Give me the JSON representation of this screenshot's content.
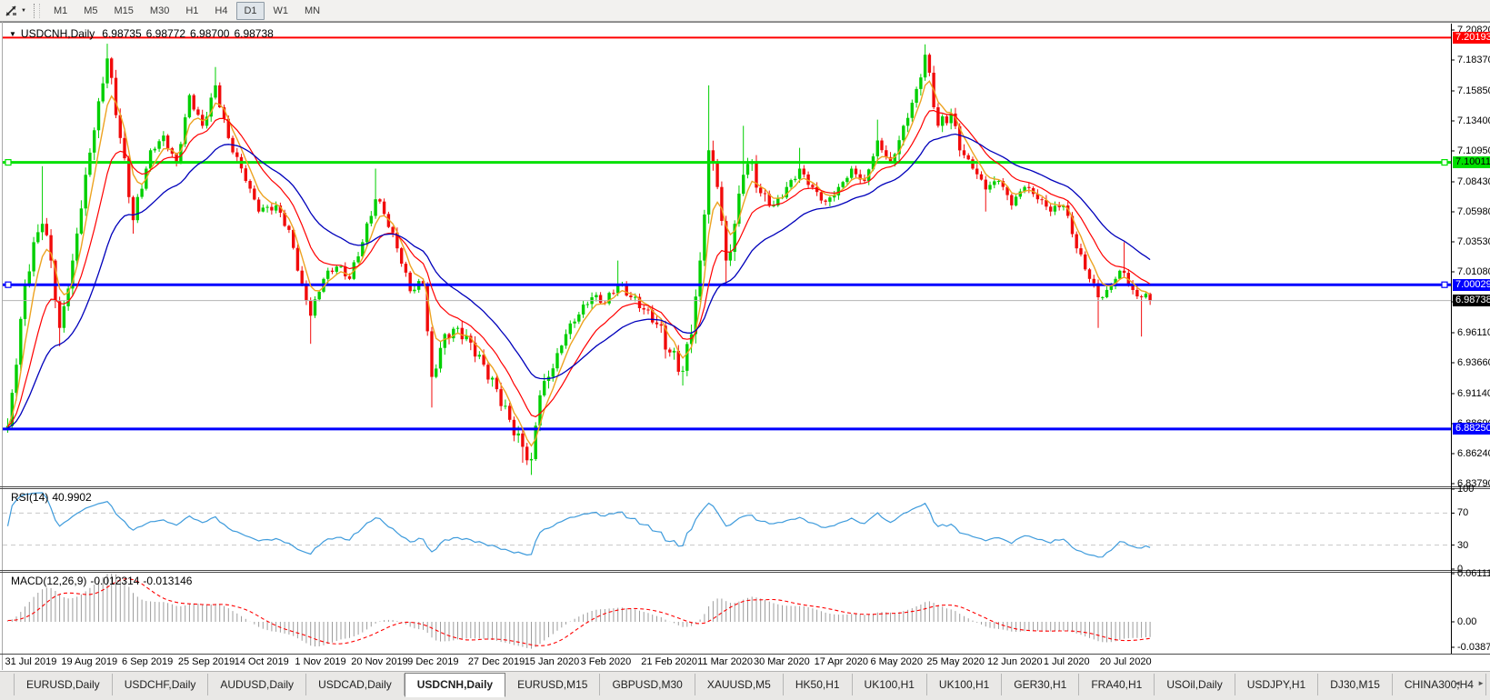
{
  "toolbar": {
    "caret": "▼",
    "periods": [
      "M1",
      "M5",
      "M15",
      "M30",
      "H1",
      "H4",
      "D1",
      "W1",
      "MN"
    ],
    "active_period": "D1"
  },
  "chart": {
    "collapse_arrow": "▼",
    "symbol_timeframe": "USDCNH,Daily",
    "open": "6.98735",
    "high": "6.98772",
    "low": "6.98700",
    "close": "6.98738"
  },
  "rsi_label": {
    "name": "RSI(14)",
    "value": "40.9902"
  },
  "macd_label": {
    "name": "MACD(12,26,9)",
    "value": "-0.012314",
    "signal_value": "-0.013146"
  },
  "tabbar": {
    "scroll_left": "◄",
    "scroll_right": "►",
    "active_tab": "USDCNH,Daily",
    "tabs": [
      "EURUSD,Daily",
      "USDCHF,Daily",
      "AUDUSD,Daily",
      "USDCAD,Daily",
      "USDCNH,Daily",
      "EURUSD,M15",
      "GBPUSD,M30",
      "XAUUSD,M5",
      "HK50,H1",
      "UK100,H1",
      "UK100,H1",
      "GER30,H1",
      "FRA40,H1",
      "USOil,Daily",
      "USDJPY,H1",
      "DJ30,M15",
      "CHINA300,H4"
    ]
  },
  "chart_data": {
    "type": "candlestick",
    "symbol": "USDCNH",
    "timeframe": "Daily",
    "current_ohlc": {
      "open": 6.98735,
      "high": 6.98772,
      "low": 6.987,
      "close": 6.98738
    },
    "price_axis_ticks": [
      "7.20820",
      "7.18370",
      "7.15850",
      "7.13400",
      "7.10950",
      "7.08430",
      "7.05980",
      "7.03530",
      "7.01080",
      "6.98630",
      "6.96110",
      "6.93660",
      "6.91140",
      "6.88690",
      "6.86240",
      "6.83790"
    ],
    "date_ticks": {
      "indices": [
        0,
        13,
        27,
        40,
        53,
        67,
        80,
        93,
        107,
        120,
        133,
        147,
        160,
        173,
        187,
        200,
        213,
        227,
        240,
        253
      ],
      "labels": [
        "31 Jul 2019",
        "19 Aug 2019",
        "6 Sep 2019",
        "25 Sep 2019",
        "14 Oct 2019",
        "1 Nov 2019",
        "20 Nov 2019",
        "9 Dec 2019",
        "27 Dec 2019",
        "15 Jan 2020",
        "3 Feb 2020",
        "21 Feb 2020",
        "11 Mar 2020",
        "30 Mar 2020",
        "17 Apr 2020",
        "6 May 2020",
        "25 May 2020",
        "12 Jun 2020",
        "1 Jul 2020",
        "20 Jul 2020"
      ]
    },
    "levels": [
      {
        "price": 7.20193,
        "label": "7.20193",
        "color": "#ff0000",
        "badge_color": "#ff0000",
        "badge_text_color": "#ffffff",
        "width": 2,
        "name": "resistance-line-upper",
        "end_markers": false
      },
      {
        "price": 7.10011,
        "label": "7.10011",
        "color": "#00e000",
        "badge_color": "#00e000",
        "badge_text_color": "#000000",
        "width": 3,
        "name": "resistance-line-green",
        "end_markers": true
      },
      {
        "price": 7.00029,
        "label": "7.00029",
        "color": "#0000ff",
        "badge_color": "#0000ff",
        "badge_text_color": "#ffffff",
        "width": 3,
        "name": "support-line-blue",
        "end_markers": true
      },
      {
        "price": 6.98738,
        "label": "6.98738",
        "color": "#b4b4b4",
        "badge_color": "#000000",
        "badge_text_color": "#ffffff",
        "width": 1,
        "name": "current-price-line",
        "end_markers": false
      },
      {
        "price": 6.8825,
        "label": "6.88250",
        "color": "#0000ff",
        "badge_color": "#0000ff",
        "badge_text_color": "#ffffff",
        "width": 3,
        "name": "support-line-lower",
        "end_markers": false
      }
    ],
    "candle_count": 265,
    "up_color": "#00cf00",
    "down_color": "#f10b0b",
    "prehistory": {
      "bars": 48,
      "base": 6.876,
      "amp": 0.005,
      "drift": 0.00022
    },
    "volatility_zones": [
      {
        "from": 0,
        "to": 30,
        "f": 1.6
      },
      {
        "from": 95,
        "to": 125,
        "f": 1.5
      },
      {
        "from": 150,
        "to": 175,
        "f": 1.9
      },
      {
        "from": 205,
        "to": 221,
        "f": 1.4
      }
    ],
    "close_anchors": [
      {
        "i": 0,
        "c": 6.885
      },
      {
        "i": 2,
        "c": 6.935
      },
      {
        "i": 4,
        "c": 7.0
      },
      {
        "i": 6,
        "c": 7.035
      },
      {
        "i": 8,
        "c": 7.05,
        "h": 7.097
      },
      {
        "i": 10,
        "c": 7.02
      },
      {
        "i": 12,
        "c": 6.965,
        "l": 6.95
      },
      {
        "i": 15,
        "c": 7.02
      },
      {
        "i": 18,
        "c": 7.09
      },
      {
        "i": 21,
        "c": 7.15
      },
      {
        "i": 23,
        "c": 7.185,
        "h": 7.197
      },
      {
        "i": 26,
        "c": 7.12
      },
      {
        "i": 29,
        "c": 7.053,
        "l": 7.042
      },
      {
        "i": 33,
        "c": 7.11
      },
      {
        "i": 36,
        "c": 7.122
      },
      {
        "i": 39,
        "c": 7.1
      },
      {
        "i": 42,
        "c": 7.155
      },
      {
        "i": 45,
        "c": 7.13
      },
      {
        "i": 48,
        "c": 7.163,
        "h": 7.178
      },
      {
        "i": 51,
        "c": 7.12
      },
      {
        "i": 55,
        "c": 7.085
      },
      {
        "i": 58,
        "c": 7.06
      },
      {
        "i": 62,
        "c": 7.065
      },
      {
        "i": 65,
        "c": 7.045
      },
      {
        "i": 68,
        "c": 7.0
      },
      {
        "i": 70,
        "c": 6.975,
        "l": 6.952
      },
      {
        "i": 73,
        "c": 7.005
      },
      {
        "i": 76,
        "c": 7.015
      },
      {
        "i": 79,
        "c": 7.005
      },
      {
        "i": 82,
        "c": 7.035
      },
      {
        "i": 85,
        "c": 7.07,
        "h": 7.095
      },
      {
        "i": 87,
        "c": 7.058
      },
      {
        "i": 90,
        "c": 7.03
      },
      {
        "i": 93,
        "c": 6.995
      },
      {
        "i": 96,
        "c": 7.0
      },
      {
        "i": 98,
        "c": 6.925,
        "l": 6.9
      },
      {
        "i": 101,
        "c": 6.96
      },
      {
        "i": 104,
        "c": 6.965
      },
      {
        "i": 107,
        "c": 6.953
      },
      {
        "i": 110,
        "c": 6.935
      },
      {
        "i": 113,
        "c": 6.915
      },
      {
        "i": 116,
        "c": 6.89
      },
      {
        "i": 119,
        "c": 6.868,
        "l": 6.855
      },
      {
        "i": 121,
        "c": 6.858,
        "l": 6.845
      },
      {
        "i": 123,
        "c": 6.91
      },
      {
        "i": 126,
        "c": 6.932
      },
      {
        "i": 129,
        "c": 6.96
      },
      {
        "i": 132,
        "c": 6.976
      },
      {
        "i": 135,
        "c": 6.99
      },
      {
        "i": 138,
        "c": 6.985
      },
      {
        "i": 141,
        "c": 7.0,
        "h": 7.02
      },
      {
        "i": 144,
        "c": 6.99
      },
      {
        "i": 147,
        "c": 6.98
      },
      {
        "i": 150,
        "c": 6.968
      },
      {
        "i": 153,
        "c": 6.945
      },
      {
        "i": 156,
        "c": 6.93,
        "l": 6.918
      },
      {
        "i": 158,
        "c": 6.96
      },
      {
        "i": 160,
        "c": 7.02
      },
      {
        "i": 162,
        "c": 7.11,
        "h": 7.163
      },
      {
        "i": 164,
        "c": 7.08
      },
      {
        "i": 166,
        "c": 7.02,
        "l": 7.0
      },
      {
        "i": 168,
        "c": 7.05
      },
      {
        "i": 170,
        "c": 7.09,
        "h": 7.13
      },
      {
        "i": 172,
        "c": 7.1
      },
      {
        "i": 174,
        "c": 7.075
      },
      {
        "i": 177,
        "c": 7.065
      },
      {
        "i": 180,
        "c": 7.08
      },
      {
        "i": 183,
        "c": 7.095,
        "h": 7.112
      },
      {
        "i": 186,
        "c": 7.08
      },
      {
        "i": 189,
        "c": 7.068
      },
      {
        "i": 192,
        "c": 7.08
      },
      {
        "i": 195,
        "c": 7.095
      },
      {
        "i": 198,
        "c": 7.085
      },
      {
        "i": 201,
        "c": 7.118,
        "h": 7.135
      },
      {
        "i": 204,
        "c": 7.1
      },
      {
        "i": 207,
        "c": 7.13
      },
      {
        "i": 210,
        "c": 7.16
      },
      {
        "i": 212,
        "c": 7.188,
        "h": 7.1965
      },
      {
        "i": 215,
        "c": 7.13
      },
      {
        "i": 218,
        "c": 7.14
      },
      {
        "i": 220,
        "c": 7.11
      },
      {
        "i": 223,
        "c": 7.095
      },
      {
        "i": 226,
        "c": 7.078,
        "l": 7.06
      },
      {
        "i": 229,
        "c": 7.085
      },
      {
        "i": 232,
        "c": 7.065
      },
      {
        "i": 235,
        "c": 7.08
      },
      {
        "i": 238,
        "c": 7.07
      },
      {
        "i": 241,
        "c": 7.06
      },
      {
        "i": 244,
        "c": 7.065
      },
      {
        "i": 247,
        "c": 7.03
      },
      {
        "i": 250,
        "c": 7.005
      },
      {
        "i": 252,
        "c": 6.99,
        "l": 6.965
      },
      {
        "i": 254,
        "c": 6.996
      },
      {
        "i": 256,
        "c": 7.005
      },
      {
        "i": 258,
        "c": 7.01,
        "h": 7.035
      },
      {
        "i": 260,
        "c": 6.996
      },
      {
        "i": 262,
        "c": 6.99,
        "l": 6.958
      },
      {
        "i": 264,
        "c": 6.98738
      }
    ],
    "moving_averages": [
      {
        "period": 5,
        "type": "ema",
        "color": "#eda321",
        "width": 1.4,
        "name": "ma-fast-orange"
      },
      {
        "period": 13,
        "type": "ema",
        "color": "#ff0000",
        "width": 1.2,
        "name": "ma-medium-red"
      },
      {
        "period": 28,
        "type": "ema",
        "color": "#0000bb",
        "width": 1.3,
        "name": "ma-slow-blue"
      }
    ],
    "rsi": {
      "period": 14,
      "value": 40.9902,
      "overbought": 70,
      "oversold": 30,
      "scale_ticks": [
        "100",
        "70",
        "30",
        "0"
      ],
      "color": "#3e9bdc",
      "level_color": "#c8c8c8"
    },
    "macd": {
      "fast": 12,
      "slow": 26,
      "signal": 9,
      "value": -0.012314,
      "signal_value": -0.013146,
      "scale_ticks": [
        "0.061119",
        "0.00",
        "-0.038777"
      ],
      "bar_color": "#9c9c9c",
      "signal_color": "#ff0000"
    }
  }
}
